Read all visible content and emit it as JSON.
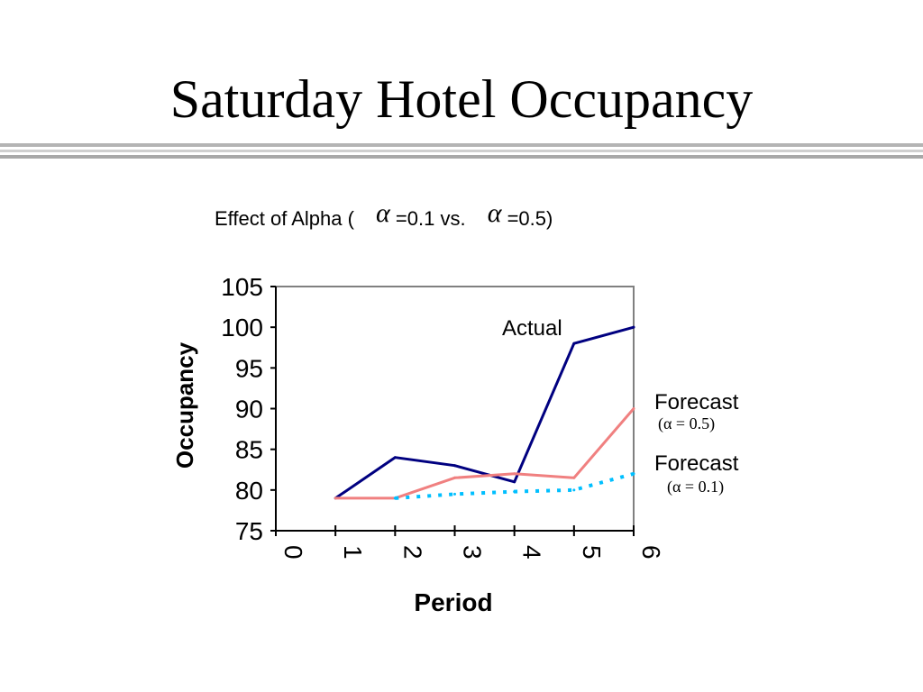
{
  "slide": {
    "title": "Saturday Hotel Occupancy"
  },
  "chart_data": {
    "type": "line",
    "title": {
      "prefix": "Effect of Alpha (",
      "alpha_symbol": "α",
      "middle": " =0.1 vs. ",
      "suffix": "=0.5)"
    },
    "xlabel": "Period",
    "ylabel": "Occupancy",
    "xlim": [
      0,
      6
    ],
    "ylim": [
      75,
      105
    ],
    "x_ticks": [
      0,
      1,
      2,
      3,
      4,
      5,
      6
    ],
    "y_ticks": [
      75,
      80,
      85,
      90,
      95,
      100,
      105
    ],
    "grid": false,
    "series": [
      {
        "name": "Actual",
        "color": "#000080",
        "style": "solid",
        "x": [
          1,
          2,
          3,
          4,
          5,
          6
        ],
        "values": [
          79,
          84,
          83,
          81,
          98,
          100
        ]
      },
      {
        "name": "Forecast",
        "alpha_label": "(α = 0.5)",
        "color": "#F08080",
        "style": "solid",
        "x": [
          1,
          2,
          3,
          4,
          5,
          6
        ],
        "values": [
          79,
          79,
          81.5,
          82,
          81.5,
          90
        ]
      },
      {
        "name": "Forecast",
        "alpha_label": "(α = 0.1)",
        "color": "#00BFFF",
        "style": "dotted",
        "x": [
          2,
          3,
          4,
          5,
          6
        ],
        "values": [
          79,
          79.5,
          79.8,
          80,
          82
        ]
      }
    ]
  }
}
